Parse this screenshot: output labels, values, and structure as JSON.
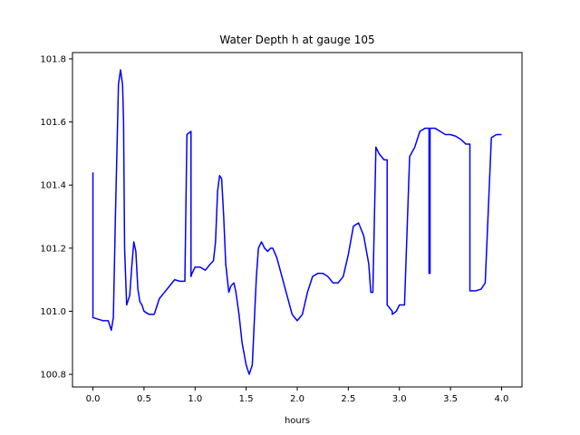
{
  "chart_data": {
    "type": "line",
    "title": "Water Depth h at gauge 105",
    "xlabel": "hours",
    "ylabel": "",
    "xlim": [
      -0.2,
      4.2
    ],
    "ylim": [
      100.76,
      101.82
    ],
    "xticks": [
      0.0,
      0.5,
      1.0,
      1.5,
      2.0,
      2.5,
      3.0,
      3.5,
      4.0
    ],
    "xtick_labels": [
      "0.0",
      "0.5",
      "1.0",
      "1.5",
      "2.0",
      "2.5",
      "3.0",
      "3.5",
      "4.0"
    ],
    "yticks": [
      100.8,
      101.0,
      101.2,
      101.4,
      101.6,
      101.8
    ],
    "ytick_labels": [
      "100.8",
      "101.0",
      "101.2",
      "101.4",
      "101.6",
      "101.8"
    ],
    "grid": false,
    "series": [
      {
        "color": "#0000ff",
        "x": [
          0.0,
          0.0,
          0.05,
          0.1,
          0.15,
          0.18,
          0.2,
          0.22,
          0.25,
          0.27,
          0.29,
          0.3,
          0.31,
          0.33,
          0.36,
          0.38,
          0.4,
          0.42,
          0.43,
          0.44,
          0.46,
          0.48,
          0.5,
          0.55,
          0.6,
          0.65,
          0.7,
          0.75,
          0.8,
          0.85,
          0.9,
          0.92,
          0.92,
          0.96,
          0.96,
          0.97,
          1.0,
          1.05,
          1.1,
          1.15,
          1.18,
          1.2,
          1.22,
          1.24,
          1.26,
          1.28,
          1.3,
          1.33,
          1.35,
          1.38,
          1.4,
          1.43,
          1.46,
          1.5,
          1.53,
          1.56,
          1.58,
          1.6,
          1.62,
          1.65,
          1.68,
          1.71,
          1.74,
          1.76,
          1.8,
          1.85,
          1.9,
          1.95,
          2.0,
          2.05,
          2.1,
          2.15,
          2.2,
          2.25,
          2.3,
          2.35,
          2.4,
          2.45,
          2.5,
          2.55,
          2.6,
          2.65,
          2.7,
          2.72,
          2.74,
          2.77,
          2.8,
          2.85,
          2.88,
          2.88,
          2.93,
          2.93,
          2.97,
          3.0,
          3.05,
          3.1,
          3.1,
          3.15,
          3.2,
          3.25,
          3.28,
          3.29,
          3.29,
          3.3,
          3.3,
          3.35,
          3.4,
          3.45,
          3.5,
          3.55,
          3.6,
          3.65,
          3.69,
          3.69,
          3.75,
          3.8,
          3.84,
          3.84,
          3.9,
          3.95,
          4.0
        ],
        "y": [
          101.44,
          100.98,
          100.975,
          100.97,
          100.97,
          100.94,
          100.98,
          101.3,
          101.72,
          101.765,
          101.72,
          101.6,
          101.2,
          101.02,
          101.05,
          101.14,
          101.22,
          101.19,
          101.13,
          101.07,
          101.03,
          101.02,
          101.0,
          100.99,
          100.99,
          101.04,
          101.06,
          101.08,
          101.1,
          101.095,
          101.095,
          101.56,
          101.56,
          101.57,
          101.11,
          101.12,
          101.14,
          101.14,
          101.13,
          101.15,
          101.16,
          101.22,
          101.38,
          101.43,
          101.42,
          101.3,
          101.15,
          101.06,
          101.08,
          101.09,
          101.06,
          100.99,
          100.9,
          100.83,
          100.8,
          100.83,
          100.97,
          101.11,
          101.2,
          101.22,
          101.2,
          101.19,
          101.2,
          101.2,
          101.17,
          101.11,
          101.05,
          100.99,
          100.97,
          100.99,
          101.06,
          101.11,
          101.12,
          101.12,
          101.11,
          101.09,
          101.09,
          101.11,
          101.18,
          101.27,
          101.28,
          101.24,
          101.15,
          101.06,
          101.06,
          101.52,
          101.5,
          101.48,
          101.48,
          101.02,
          101.0,
          100.99,
          101.0,
          101.02,
          101.02,
          101.49,
          101.49,
          101.52,
          101.57,
          101.58,
          101.58,
          101.58,
          101.12,
          101.12,
          101.58,
          101.58,
          101.57,
          101.56,
          101.56,
          101.555,
          101.545,
          101.53,
          101.53,
          101.065,
          101.065,
          101.07,
          101.09,
          101.09,
          101.55,
          101.56,
          101.56
        ]
      }
    ]
  }
}
